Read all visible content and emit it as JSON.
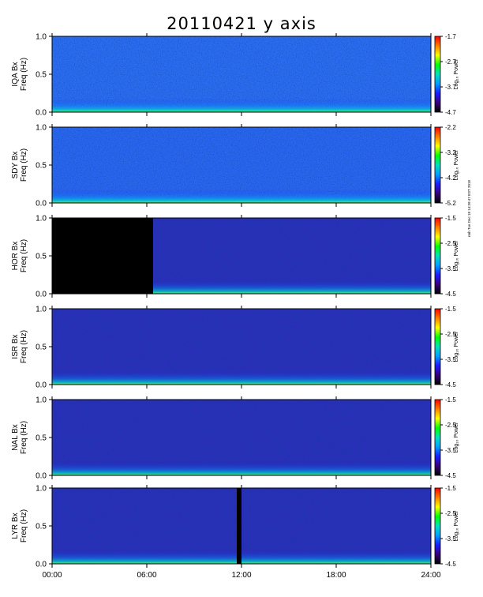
{
  "chart_data": {
    "type": "heatmap",
    "title": "20110421 y axis",
    "x": {
      "ticks": [
        "00:00",
        "06:00",
        "12:00",
        "18:00",
        "24:00"
      ],
      "range_hours": [
        0,
        24
      ]
    },
    "ylim": [
      0.0,
      1.0
    ],
    "yticks": [
      "0.0",
      "0.5",
      "1.0"
    ],
    "colorbar_label": "Log₁₀ Power",
    "panels": [
      {
        "station": "IQA Bx",
        "ylabel": "Freq (Hz)",
        "cbar_ticks": [
          "-1.7",
          "-2.7",
          "-3.7",
          "-4.7"
        ],
        "cmin": -4.7,
        "cmax": -1.7,
        "gaps_hours": []
      },
      {
        "station": "SDY Bx",
        "ylabel": "Freq (Hz)",
        "cbar_ticks": [
          "-2.2",
          "-3.2",
          "-4.2",
          "-5.2"
        ],
        "cmin": -5.2,
        "cmax": -2.2,
        "gaps_hours": []
      },
      {
        "station": "HOR Bx",
        "ylabel": "Freq (Hz)",
        "cbar_ticks": [
          "-1.5",
          "-2.5",
          "-3.5",
          "-4.5"
        ],
        "cmin": -4.5,
        "cmax": -1.5,
        "gaps_hours": [
          [
            0.0,
            6.4
          ]
        ]
      },
      {
        "station": "ISR Bx",
        "ylabel": "Freq (Hz)",
        "cbar_ticks": [
          "-1.5",
          "-2.5",
          "-3.5",
          "-4.5"
        ],
        "cmin": -4.5,
        "cmax": -1.5,
        "gaps_hours": []
      },
      {
        "station": "NAL Bx",
        "ylabel": "Freq (Hz)",
        "cbar_ticks": [
          "-1.5",
          "-2.5",
          "-3.5",
          "-4.5"
        ],
        "cmin": -4.5,
        "cmax": -1.5,
        "gaps_hours": []
      },
      {
        "station": "LYR Bx",
        "ylabel": "Freq (Hz)",
        "cbar_ticks": [
          "-1.5",
          "-2.5",
          "-3.5",
          "-4.5"
        ],
        "cmin": -4.5,
        "cmax": -1.5,
        "gaps_hours": [
          [
            11.7,
            12.0
          ]
        ]
      }
    ],
    "colormap": [
      "#000000",
      "#3a007a",
      "#1d1dff",
      "#00a0ff",
      "#00e0c0",
      "#00ff00",
      "#ffff00",
      "#ff8000",
      "#ff0000"
    ],
    "credit": "rmh Tue Dec 18 14:39:47 EST 2018"
  }
}
